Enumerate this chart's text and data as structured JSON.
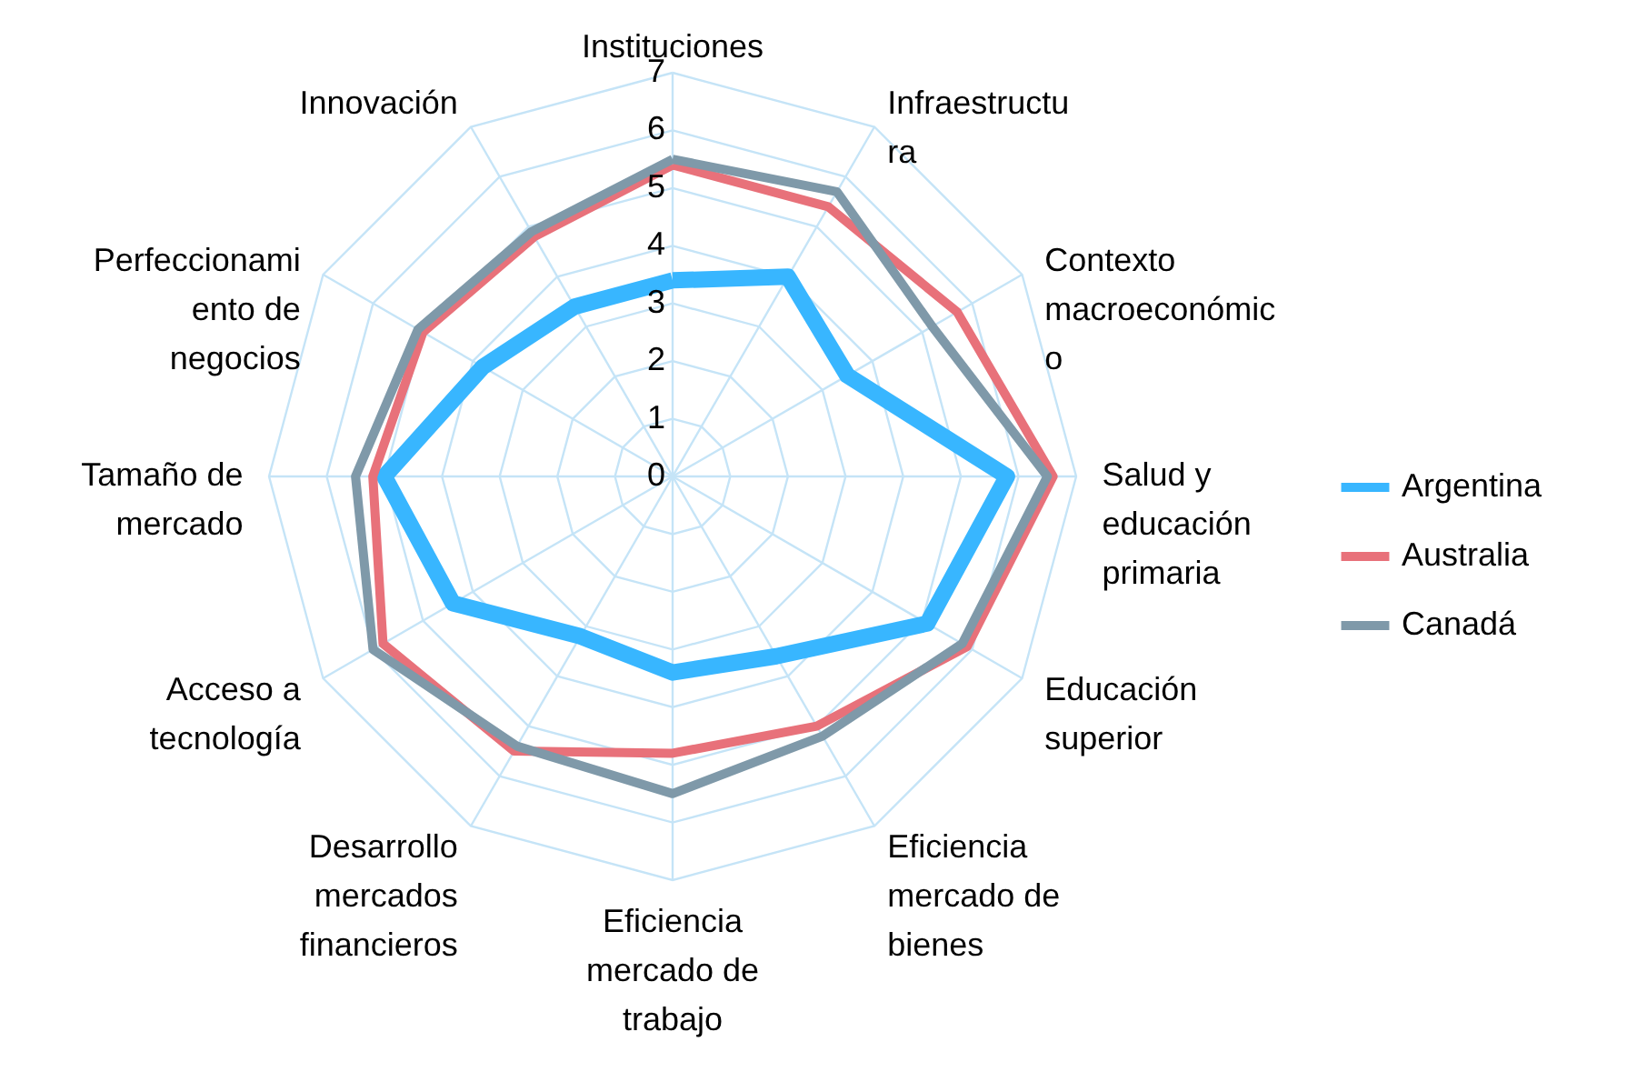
{
  "chart_data": {
    "type": "radar",
    "categories": [
      "Instituciones",
      "Infraestructura",
      "Contexto macroeconómico",
      "Salud y educación primaria",
      "Educación superior",
      "Eficiencia mercado de bienes",
      "Eficiencia mercado de trabajo",
      "Desarrollo mercados financieros",
      "Acceso a tecnología",
      "Tamaño de mercado",
      "Perfeccionamiento de negocios",
      "Innovación"
    ],
    "series": [
      {
        "name": "Argentina",
        "color": "#38b6ff",
        "values": [
          3.4,
          4.0,
          3.5,
          5.8,
          5.1,
          3.6,
          3.4,
          3.2,
          4.4,
          5.0,
          3.8,
          3.4
        ]
      },
      {
        "name": "Australia",
        "color": "#e8717a",
        "values": [
          5.4,
          5.4,
          5.7,
          6.6,
          5.9,
          5.0,
          4.8,
          5.5,
          5.8,
          5.2,
          5.0,
          4.8
        ]
      },
      {
        "name": "Canadá",
        "color": "#7f99a9",
        "values": [
          5.5,
          5.7,
          5.2,
          6.5,
          5.8,
          5.2,
          5.5,
          5.4,
          6.0,
          5.5,
          5.1,
          4.9
        ]
      }
    ],
    "ylim": [
      0,
      7
    ],
    "yticks": [
      0,
      1,
      2,
      3,
      4,
      5,
      6,
      7
    ],
    "grid": true,
    "legend": "right"
  }
}
